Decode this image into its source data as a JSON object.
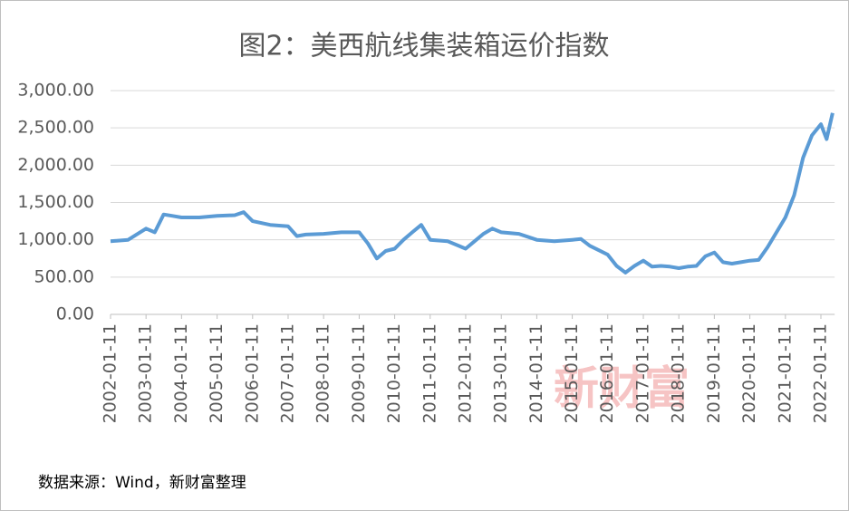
{
  "chart_data": {
    "type": "line",
    "title": "图2：美西航线集装箱运价指数",
    "source": "数据来源：Wind，新财富整理",
    "watermark": "新财富",
    "x": [
      "2002-01-11",
      "2002-07-11",
      "2003-01-11",
      "2003-04-11",
      "2003-07-11",
      "2003-10-11",
      "2004-01-11",
      "2004-07-11",
      "2005-01-11",
      "2005-07-11",
      "2005-10-11",
      "2006-01-11",
      "2006-07-11",
      "2007-01-11",
      "2007-04-11",
      "2007-07-11",
      "2008-01-11",
      "2008-07-11",
      "2009-01-11",
      "2009-04-11",
      "2009-07-11",
      "2009-10-11",
      "2010-01-11",
      "2010-04-11",
      "2010-07-11",
      "2010-10-11",
      "2011-01-11",
      "2011-07-11",
      "2012-01-11",
      "2012-04-11",
      "2012-07-11",
      "2012-10-11",
      "2013-01-11",
      "2013-07-11",
      "2014-01-11",
      "2014-07-11",
      "2015-01-11",
      "2015-04-11",
      "2015-07-11",
      "2015-10-11",
      "2016-01-11",
      "2016-04-11",
      "2016-07-11",
      "2016-10-11",
      "2017-01-11",
      "2017-04-11",
      "2017-07-11",
      "2017-10-11",
      "2018-01-11",
      "2018-04-11",
      "2018-07-11",
      "2018-10-11",
      "2019-01-11",
      "2019-04-11",
      "2019-07-11",
      "2019-10-11",
      "2020-01-11",
      "2020-04-11",
      "2020-07-11",
      "2020-10-11",
      "2021-01-11",
      "2021-04-11",
      "2021-07-11",
      "2021-10-11",
      "2022-01-11",
      "2022-03-11",
      "2022-05-11"
    ],
    "series": [
      {
        "color": "#5b9bd5",
        "values": [
          980,
          1000,
          1150,
          1100,
          1340,
          1320,
          1300,
          1300,
          1320,
          1330,
          1370,
          1250,
          1200,
          1180,
          1050,
          1070,
          1080,
          1100,
          1100,
          950,
          750,
          850,
          880,
          1000,
          1100,
          1200,
          1000,
          980,
          880,
          980,
          1080,
          1150,
          1100,
          1080,
          1000,
          980,
          1000,
          1010,
          920,
          860,
          800,
          650,
          560,
          650,
          720,
          640,
          650,
          640,
          620,
          640,
          650,
          780,
          830,
          700,
          680,
          700,
          720,
          730,
          900,
          1100,
          1300,
          1600,
          2100,
          2400,
          2550,
          2350,
          2700
        ]
      }
    ],
    "xlim": [
      "2002-01-11",
      "2022-06-01"
    ],
    "xticks": [
      "2002-01-11",
      "2003-01-11",
      "2004-01-11",
      "2005-01-11",
      "2006-01-11",
      "2007-01-11",
      "2008-01-11",
      "2009-01-11",
      "2010-01-11",
      "2011-01-11",
      "2012-01-11",
      "2013-01-11",
      "2014-01-11",
      "2015-01-11",
      "2016-01-11",
      "2017-01-11",
      "2018-01-11",
      "2019-01-11",
      "2020-01-11",
      "2021-01-11",
      "2022-01-11"
    ],
    "ylim": [
      0,
      3000
    ],
    "yticks": [
      {
        "value": 0,
        "label": "0.00"
      },
      {
        "value": 500,
        "label": "500.00"
      },
      {
        "value": 1000,
        "label": "1,000.00"
      },
      {
        "value": 1500,
        "label": "1,500.00"
      },
      {
        "value": 2000,
        "label": "2,000.00"
      },
      {
        "value": 2500,
        "label": "2,500.00"
      },
      {
        "value": 3000,
        "label": "3,000.00"
      }
    ],
    "grid": true
  }
}
